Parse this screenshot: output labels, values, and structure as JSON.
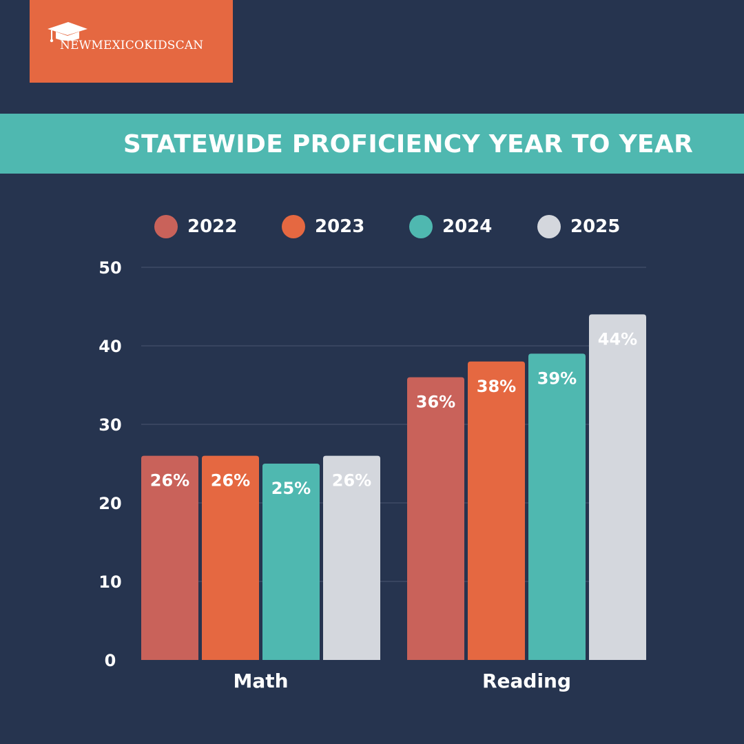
{
  "brand": {
    "name": "NEWMEXICOKIDSCAN",
    "logo_icon": "graduation-cap-icon",
    "color": "#e56841"
  },
  "banner": {
    "title": "STATEWIDE PROFICIENCY YEAR TO YEAR",
    "color": "#4fb8b0"
  },
  "chart_data": {
    "type": "bar",
    "title": "STATEWIDE PROFICIENCY YEAR TO YEAR",
    "categories": [
      "Math",
      "Reading"
    ],
    "series": [
      {
        "name": "2022",
        "color": "#c9625a",
        "values": [
          26,
          36
        ],
        "labels": [
          "26%",
          "36%"
        ]
      },
      {
        "name": "2023",
        "color": "#e56841",
        "values": [
          26,
          38
        ],
        "labels": [
          "26%",
          "38%"
        ]
      },
      {
        "name": "2024",
        "color": "#4fb8b0",
        "values": [
          25,
          39
        ],
        "labels": [
          "25%",
          "39%"
        ]
      },
      {
        "name": "2025",
        "color": "#d4d7dd",
        "values": [
          26,
          44
        ],
        "labels": [
          "26%",
          "44%"
        ]
      }
    ],
    "yticks": [
      0,
      10,
      20,
      30,
      40,
      50
    ],
    "ylim": [
      0,
      50
    ],
    "xlabel": "",
    "ylabel": "",
    "grid": true,
    "legend": "top"
  }
}
